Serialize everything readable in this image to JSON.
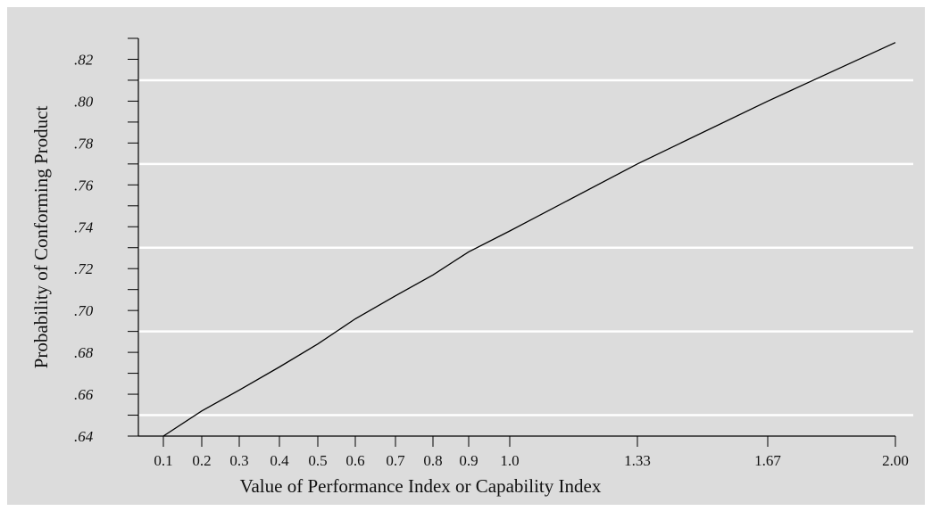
{
  "chart_data": {
    "type": "line",
    "title": "",
    "xlabel": "Value of Performance Index or Capability Index",
    "ylabel": "Probability of Conforming Product",
    "x_ticks": [
      {
        "value": 0.1,
        "label": "0.1"
      },
      {
        "value": 0.2,
        "label": "0.2"
      },
      {
        "value": 0.3,
        "label": "0.3"
      },
      {
        "value": 0.4,
        "label": "0.4"
      },
      {
        "value": 0.5,
        "label": "0.5"
      },
      {
        "value": 0.6,
        "label": "0.6"
      },
      {
        "value": 0.7,
        "label": "0.7"
      },
      {
        "value": 0.8,
        "label": "0.8"
      },
      {
        "value": 0.9,
        "label": "0.9"
      },
      {
        "value": 1.0,
        "label": "1.0"
      },
      {
        "value": 1.33,
        "label": "1.33"
      },
      {
        "value": 1.67,
        "label": "1.67"
      },
      {
        "value": 2.0,
        "label": "2.00"
      }
    ],
    "y_ticks": [
      {
        "value": 0.64,
        "label": ".64"
      },
      {
        "value": 0.66,
        "label": ".66"
      },
      {
        "value": 0.68,
        "label": ".68"
      },
      {
        "value": 0.7,
        "label": ".70"
      },
      {
        "value": 0.72,
        "label": ".72"
      },
      {
        "value": 0.74,
        "label": ".74"
      },
      {
        "value": 0.76,
        "label": ".76"
      },
      {
        "value": 0.78,
        "label": ".78"
      },
      {
        "value": 0.8,
        "label": ".80"
      },
      {
        "value": 0.82,
        "label": ".82"
      }
    ],
    "ylim": [
      0.64,
      0.83
    ],
    "gridlines_y": [
      0.65,
      0.69,
      0.73,
      0.77,
      0.81
    ],
    "grid": true,
    "series": [
      {
        "x": [
          0.1,
          0.2,
          0.3,
          0.4,
          0.5,
          0.6,
          0.7,
          0.8,
          0.9,
          1.0,
          1.33,
          1.67,
          2.0
        ],
        "values": [
          0.64,
          0.652,
          0.662,
          0.673,
          0.684,
          0.696,
          0.707,
          0.717,
          0.728,
          0.738,
          0.77,
          0.8,
          0.828
        ]
      }
    ],
    "colors": {
      "background": "#dcdcdc",
      "line": "#000000",
      "grid": "#ffffff",
      "axis": "#000000"
    }
  }
}
